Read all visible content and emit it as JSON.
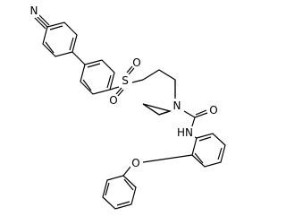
{
  "atoms": {
    "nitrile_n": "N",
    "sulfur": "S",
    "sulfonyl_o1": "O",
    "sulfonyl_o2": "O",
    "piperidine_n": "N",
    "carbonyl_o": "O",
    "amide_nh": "HN",
    "ether_o": "O"
  }
}
